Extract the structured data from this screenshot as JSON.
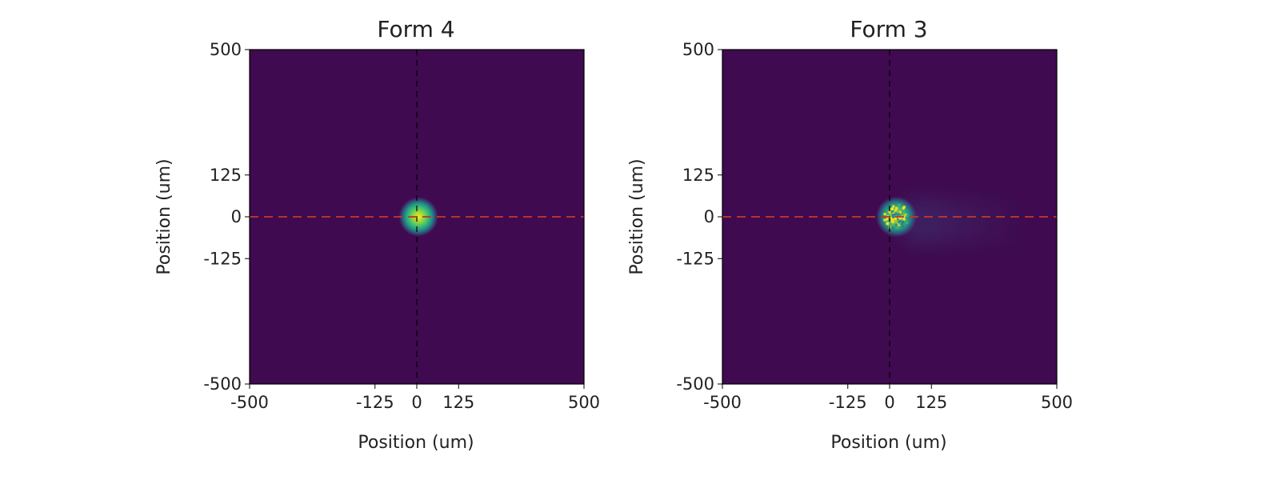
{
  "chart_data": [
    {
      "type": "heatmap",
      "title": "Form 4",
      "xlabel": "Position (um)",
      "ylabel": "Position (um)",
      "xlim": [
        -500,
        500
      ],
      "ylim": [
        -500,
        500
      ],
      "xticks": [
        "-500",
        "-125",
        "0",
        "125",
        "500"
      ],
      "yticks": [
        "500",
        "125",
        "0",
        "-125",
        "-500"
      ],
      "colormap": "viridis",
      "background_color": "#3f0a4f",
      "reference_lines": {
        "horizontal_y": 0,
        "horizontal_color": "#c0392b",
        "horizontal_style": "dashed",
        "vertical_x": 0,
        "vertical_color": "#000000",
        "vertical_style": "dashed"
      },
      "spots": [
        {
          "x": 5,
          "y": 0,
          "radius_um": 60,
          "peak": 1.0,
          "texture": "smooth"
        }
      ],
      "tail": null
    },
    {
      "type": "heatmap",
      "title": "Form 3",
      "xlabel": "Position (um)",
      "ylabel": "Position (um)",
      "xlim": [
        -500,
        500
      ],
      "ylim": [
        -500,
        500
      ],
      "xticks": [
        "-500",
        "-125",
        "0",
        "125",
        "500"
      ],
      "yticks": [
        "500",
        "125",
        "0",
        "-125",
        "-500"
      ],
      "colormap": "viridis",
      "background_color": "#3f0a4f",
      "reference_lines": {
        "horizontal_y": 0,
        "horizontal_color": "#c0392b",
        "horizontal_style": "dashed",
        "vertical_x": 0,
        "vertical_color": "#000000",
        "vertical_style": "dashed"
      },
      "spots": [
        {
          "x": 20,
          "y": 0,
          "radius_um": 62,
          "peak": 0.9,
          "texture": "speckled"
        }
      ],
      "tail": {
        "x_from": 50,
        "x_to": 400,
        "y": -15,
        "strength": 0.12
      }
    }
  ]
}
